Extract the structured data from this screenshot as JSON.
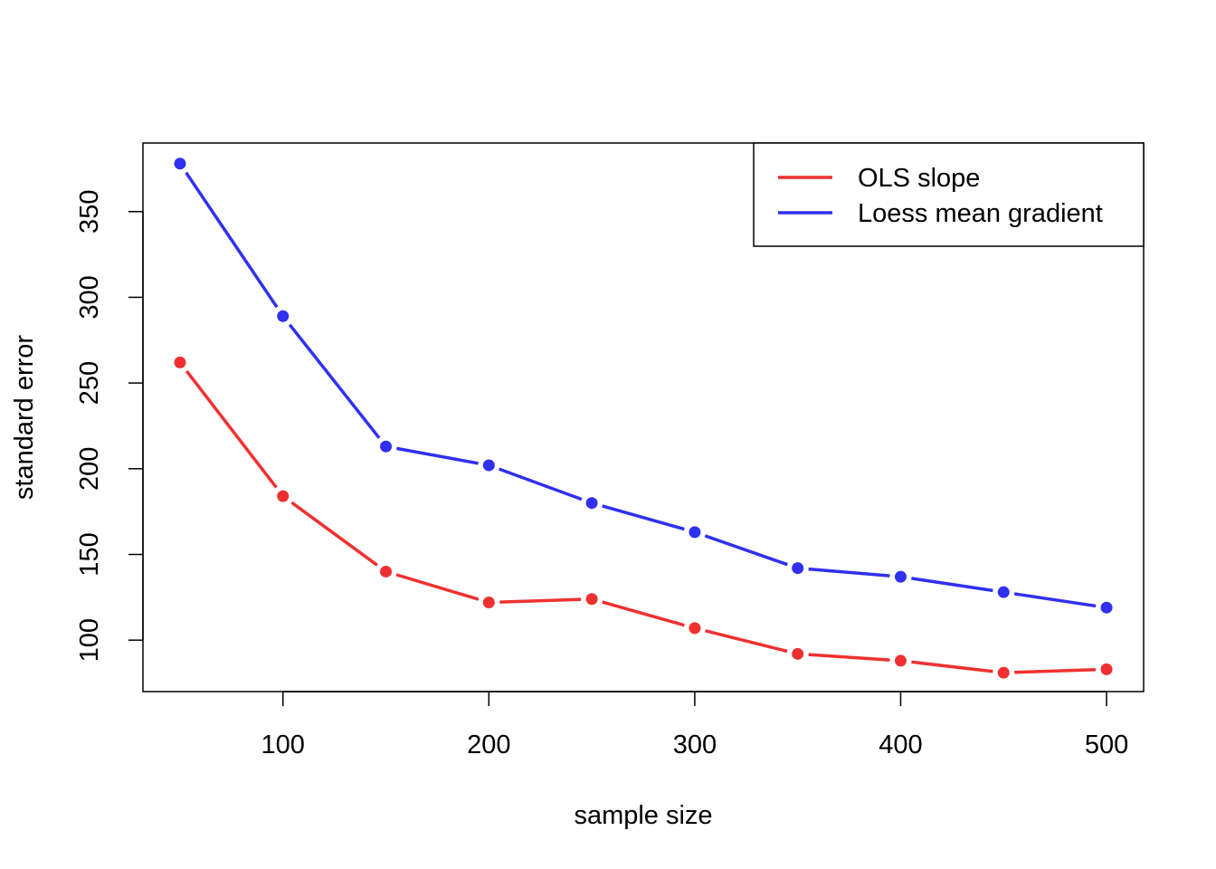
{
  "chart_data": {
    "type": "line",
    "title": "",
    "xlabel": "sample size",
    "ylabel": "standard error",
    "x": [
      50,
      100,
      150,
      200,
      250,
      300,
      350,
      400,
      450,
      500
    ],
    "xlim": [
      32,
      518
    ],
    "ylim": [
      70,
      390
    ],
    "x_ticks": [
      100,
      200,
      300,
      400,
      500
    ],
    "y_ticks": [
      100,
      150,
      200,
      250,
      300,
      350
    ],
    "grid": false,
    "legend_position": "top-right",
    "series": [
      {
        "name": "OLS slope",
        "color": "#f03030",
        "values": [
          262,
          184,
          140,
          122,
          124,
          107,
          92,
          88,
          81,
          83
        ]
      },
      {
        "name": "Loess mean gradient",
        "color": "#3030f0",
        "values": [
          378,
          289,
          213,
          202,
          180,
          163,
          142,
          137,
          128,
          119
        ]
      }
    ]
  }
}
